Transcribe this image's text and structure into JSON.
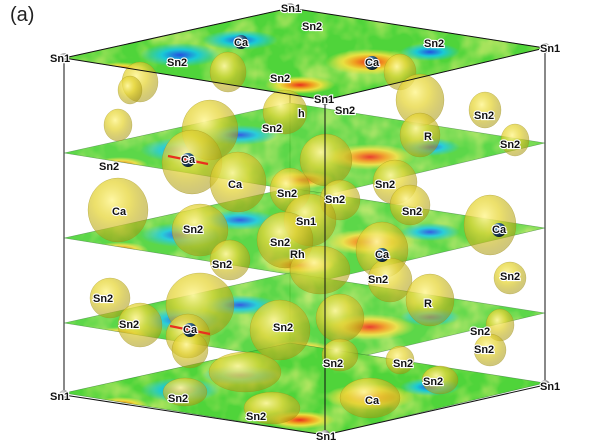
{
  "panel_label": "(a)",
  "atom_labels": {
    "sn1": "Sn1",
    "sn2": "Sn2",
    "ca": "Ca",
    "rh": "Rh",
    "rh_partial_r": "R",
    "rh_partial_h": "h"
  },
  "colors": {
    "plane_base": "#4fd43a",
    "plane_yellow": "#e8e040",
    "plane_cyan": "#19c9d6",
    "plane_blue": "#2550e0",
    "plane_red": "#e8301e",
    "isosurface": "#e0d030",
    "atom_dark": "#1a3a55",
    "atom_gray": "#8a8a8a",
    "edge": "#111111"
  }
}
